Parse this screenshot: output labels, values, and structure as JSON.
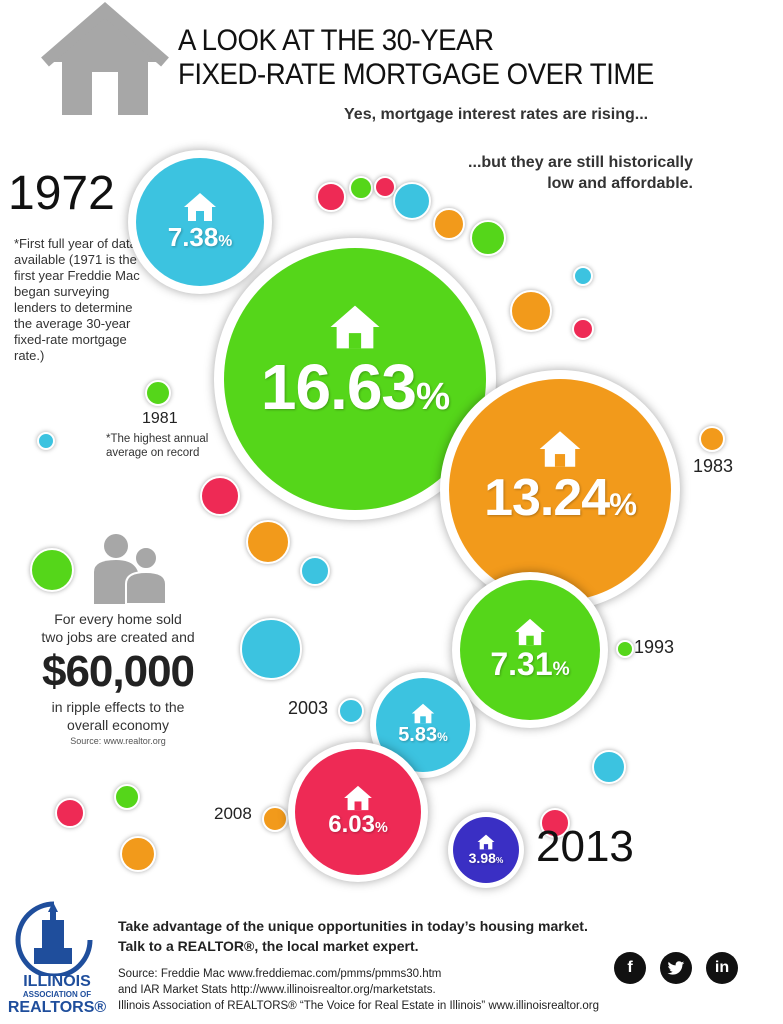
{
  "header": {
    "title_line1": "A LOOK AT THE 30-YEAR",
    "title_line2": "FIXED-RATE MORTGAGE OVER TIME",
    "subtitle1": "Yes, mortgage interest rates are rising...",
    "subtitle2_line1": "...but they are still historically",
    "subtitle2_line2": "low and affordable."
  },
  "rates": {
    "r1972": {
      "year": "1972",
      "rate": "7.38",
      "pct": "%",
      "color": "#3cc3e0"
    },
    "r1981": {
      "year": "1981",
      "rate": "16.63",
      "pct": "%",
      "color": "#55d61a"
    },
    "r1983": {
      "year": "1983",
      "rate": "13.24",
      "pct": "%",
      "color": "#f29a1b"
    },
    "r1993": {
      "year": "1993",
      "rate": "7.31",
      "pct": "%",
      "color": "#55d61a"
    },
    "r2003": {
      "year": "2003",
      "rate": "5.83",
      "pct": "%",
      "color": "#3cc3e0"
    },
    "r2008": {
      "year": "2008",
      "rate": "6.03",
      "pct": "%",
      "color": "#ee2a55"
    },
    "r2013": {
      "year": "2013",
      "rate": "3.98",
      "pct": "%",
      "color": "#3a2fc4"
    }
  },
  "notes": {
    "first_year": "*First full year of data available (1971 is the first year Freddie Mac began surveying lenders to determine the average 30-year fixed-rate mortgage rate.)",
    "highest": "*The highest annual average on record"
  },
  "jobs": {
    "line1": "For every home sold",
    "line2": "two jobs are created and",
    "amount": "$60,000",
    "line3": "in ripple effects to the",
    "line4": "overall economy",
    "source": "Source: www.realtor.org"
  },
  "footer": {
    "cta1": "Take advantage of the unique opportunities in today’s housing market.",
    "cta2": "Talk to a REALTOR®, the local market expert.",
    "src1": "Source: Freddie Mac www.freddiemac.com/pmms/pmms30.htm",
    "src2": "and IAR Market Stats http://www.illinoisrealtor.org/marketstats.",
    "src3": "Illinois Association of REALTORS® “The Voice for Real Estate in Illinois” www.illinoisrealtor.org",
    "logo_line1": "ILLINOIS",
    "logo_line2": "ASSOCIATION OF",
    "logo_line3": "REALTORS®"
  },
  "social": {
    "facebook": "f",
    "twitter": "t",
    "linkedin": "in"
  },
  "colors": {
    "green": "#55d61a",
    "orange": "#f29a1b",
    "cyan": "#3cc3e0",
    "pink": "#ee2a55",
    "purple": "#3a2fc4",
    "gray": "#a7a7a7",
    "blue": "#1f4e9c"
  }
}
